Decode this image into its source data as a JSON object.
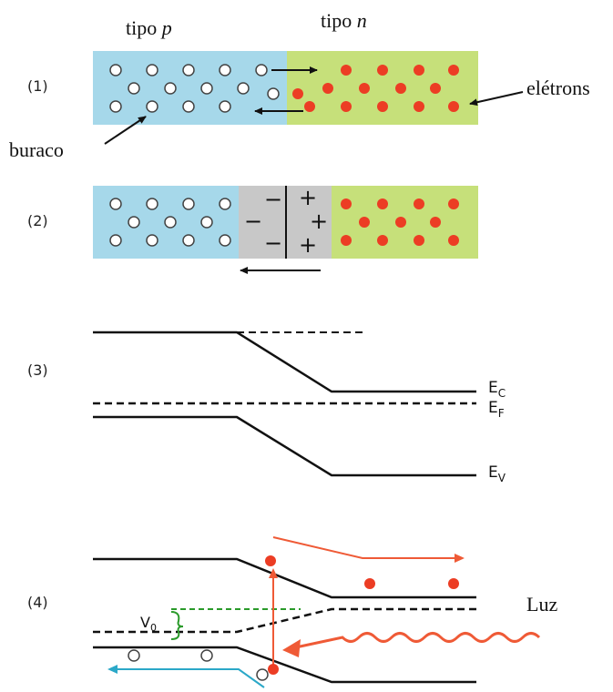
{
  "colors": {
    "p_region": "#a6d8ea",
    "n_region": "#c6e07a",
    "depletion": "#c8c8c8",
    "electron": "#ec3d24",
    "hole_fill": "#ffffff",
    "hole_stroke": "#444444",
    "band": "#111111",
    "arrow_orange": "#ef5a36",
    "arrow_blue": "#2ba8c8",
    "v0_green": "#2a9a2a"
  },
  "icons": [
    "hole-circle",
    "electron-dot",
    "arrow",
    "wavy-light-arrow"
  ],
  "header": {
    "p_label": "tipo",
    "p_symbol": "p",
    "n_label": "tipo",
    "n_symbol": "n"
  },
  "panel1": {
    "number": "(1)",
    "hole_label": "buraco",
    "electron_label": "elétrons"
  },
  "panel2": {
    "number": "(2)",
    "minus": "−",
    "plus": "+"
  },
  "panel3": {
    "number": "(3)",
    "ec": {
      "main": "E",
      "sub": "C"
    },
    "ef": {
      "main": "E",
      "sub": "F"
    },
    "ev": {
      "main": "E",
      "sub": "V"
    }
  },
  "panel4": {
    "number": "(4)",
    "v0": {
      "main": "V",
      "sub": "0"
    },
    "light_label": "Luz"
  }
}
